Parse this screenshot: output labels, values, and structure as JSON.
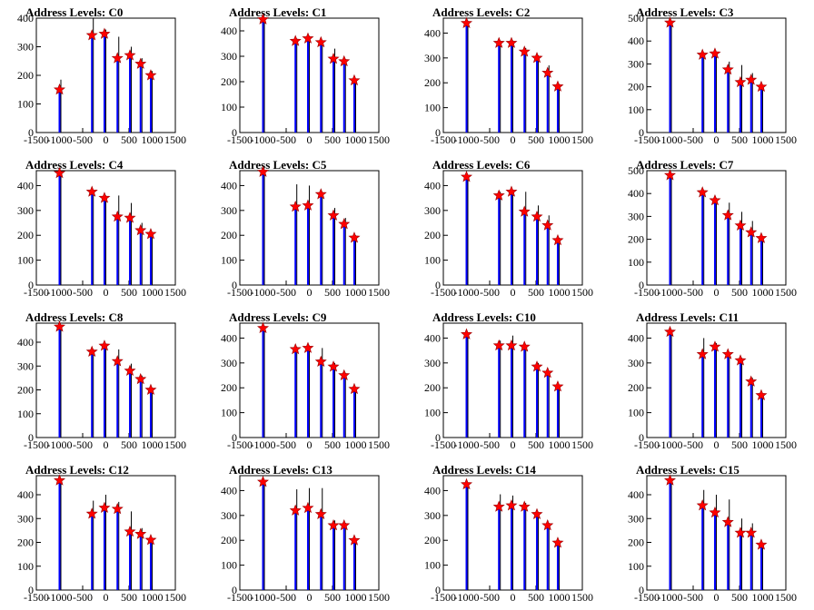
{
  "chart_data": [
    {
      "type": "bar",
      "title": "Address Levels: C0",
      "xlim": [
        -1500,
        1500
      ],
      "ylim": [
        0,
        400
      ],
      "xticks": [
        -1500,
        -1000,
        -500,
        0,
        500,
        1000,
        1500
      ],
      "yticks": [
        0,
        100,
        200,
        300,
        400
      ],
      "markers": {
        "x": [
          -1000,
          -300,
          -30,
          250,
          520,
          750,
          970
        ],
        "y": [
          150,
          340,
          345,
          260,
          270,
          240,
          200
        ]
      },
      "peaks": {
        "x": [
          -1000,
          -300,
          -30,
          250,
          520,
          750,
          970
        ],
        "y": [
          185,
          400,
          360,
          335,
          300,
          260,
          215
        ]
      }
    },
    {
      "type": "bar",
      "title": "Address Levels: C1",
      "xlim": [
        -1500,
        1500
      ],
      "ylim": [
        0,
        450
      ],
      "xticks": [
        -1500,
        -1000,
        -500,
        0,
        500,
        1000,
        1500
      ],
      "yticks": [
        0,
        100,
        200,
        300,
        400
      ],
      "markers": {
        "x": [
          -1000,
          -300,
          -30,
          250,
          520,
          750,
          970
        ],
        "y": [
          445,
          360,
          370,
          355,
          290,
          280,
          205
        ]
      },
      "peaks": {
        "x": [
          -1000,
          -300,
          -30,
          250,
          520,
          750,
          970
        ],
        "y": [
          450,
          370,
          380,
          360,
          330,
          290,
          210
        ]
      }
    },
    {
      "type": "bar",
      "title": "Address Levels: C2",
      "xlim": [
        -1500,
        1500
      ],
      "ylim": [
        0,
        460
      ],
      "xticks": [
        -1500,
        -1000,
        -500,
        0,
        500,
        1000,
        1500
      ],
      "yticks": [
        0,
        100,
        200,
        300,
        400
      ],
      "markers": {
        "x": [
          -1000,
          -300,
          -30,
          250,
          520,
          750,
          970
        ],
        "y": [
          440,
          360,
          360,
          325,
          300,
          240,
          185
        ]
      },
      "peaks": {
        "x": [
          -1000,
          -300,
          -30,
          250,
          520,
          750,
          970
        ],
        "y": [
          450,
          370,
          370,
          340,
          310,
          270,
          195
        ]
      }
    },
    {
      "type": "bar",
      "title": "Address Levels: C3",
      "xlim": [
        -1500,
        1500
      ],
      "ylim": [
        0,
        500
      ],
      "xticks": [
        -1500,
        -1000,
        -500,
        0,
        500,
        1000,
        1500
      ],
      "yticks": [
        0,
        100,
        200,
        300,
        400,
        500
      ],
      "markers": {
        "x": [
          -1000,
          -300,
          -30,
          250,
          520,
          750,
          970
        ],
        "y": [
          480,
          340,
          345,
          275,
          220,
          230,
          200
        ]
      },
      "peaks": {
        "x": [
          -1000,
          -300,
          -30,
          250,
          520,
          750,
          970
        ],
        "y": [
          490,
          350,
          350,
          310,
          295,
          260,
          205
        ]
      }
    },
    {
      "type": "bar",
      "title": "Address Levels: C4",
      "xlim": [
        -1500,
        1500
      ],
      "ylim": [
        0,
        460
      ],
      "xticks": [
        -1500,
        -1000,
        -500,
        0,
        500,
        1000,
        1500
      ],
      "yticks": [
        0,
        100,
        200,
        300,
        400
      ],
      "markers": {
        "x": [
          -1000,
          -300,
          -30,
          250,
          520,
          750,
          970
        ],
        "y": [
          450,
          375,
          350,
          275,
          270,
          220,
          205
        ]
      },
      "peaks": {
        "x": [
          -1000,
          -300,
          -30,
          250,
          520,
          750,
          970
        ],
        "y": [
          460,
          380,
          360,
          360,
          330,
          250,
          210
        ]
      }
    },
    {
      "type": "bar",
      "title": "Address Levels: C5",
      "xlim": [
        -1500,
        1500
      ],
      "ylim": [
        0,
        460
      ],
      "xticks": [
        -1500,
        -1000,
        -500,
        0,
        500,
        1000,
        1500
      ],
      "yticks": [
        0,
        100,
        200,
        300,
        400
      ],
      "markers": {
        "x": [
          -1000,
          -300,
          -30,
          250,
          520,
          750,
          970
        ],
        "y": [
          455,
          315,
          320,
          365,
          280,
          245,
          190
        ]
      },
      "peaks": {
        "x": [
          -1000,
          -300,
          -30,
          250,
          520,
          750,
          970
        ],
        "y": [
          465,
          405,
          400,
          370,
          310,
          270,
          200
        ]
      }
    },
    {
      "type": "bar",
      "title": "Address Levels: C6",
      "xlim": [
        -1500,
        1500
      ],
      "ylim": [
        0,
        460
      ],
      "xticks": [
        -1500,
        -1000,
        -500,
        0,
        500,
        1000,
        1500
      ],
      "yticks": [
        0,
        100,
        200,
        300,
        400
      ],
      "markers": {
        "x": [
          -1000,
          -300,
          -30,
          250,
          520,
          750,
          970
        ],
        "y": [
          435,
          360,
          375,
          295,
          275,
          240,
          180
        ]
      },
      "peaks": {
        "x": [
          -1000,
          -300,
          -30,
          250,
          520,
          750,
          970
        ],
        "y": [
          440,
          375,
          380,
          375,
          320,
          280,
          190
        ]
      }
    },
    {
      "type": "bar",
      "title": "Address Levels: C7",
      "xlim": [
        -1500,
        1500
      ],
      "ylim": [
        0,
        500
      ],
      "xticks": [
        -1500,
        -1000,
        -500,
        0,
        500,
        1000,
        1500
      ],
      "yticks": [
        0,
        100,
        200,
        300,
        400,
        500
      ],
      "markers": {
        "x": [
          -1000,
          -300,
          -30,
          250,
          520,
          750,
          970
        ],
        "y": [
          480,
          405,
          370,
          305,
          260,
          230,
          205
        ]
      },
      "peaks": {
        "x": [
          -1000,
          -300,
          -30,
          250,
          520,
          750,
          970
        ],
        "y": [
          490,
          410,
          380,
          360,
          320,
          280,
          210
        ]
      }
    },
    {
      "type": "bar",
      "title": "Address Levels: C8",
      "xlim": [
        -1500,
        1500
      ],
      "ylim": [
        0,
        480
      ],
      "xticks": [
        -1500,
        -1000,
        -500,
        0,
        500,
        1000,
        1500
      ],
      "yticks": [
        0,
        100,
        200,
        300,
        400
      ],
      "markers": {
        "x": [
          -1000,
          -300,
          -30,
          250,
          520,
          750,
          970
        ],
        "y": [
          465,
          360,
          385,
          320,
          280,
          245,
          200
        ]
      },
      "peaks": {
        "x": [
          -1000,
          -300,
          -30,
          250,
          520,
          750,
          970
        ],
        "y": [
          470,
          370,
          390,
          370,
          310,
          260,
          205
        ]
      }
    },
    {
      "type": "bar",
      "title": "Address Levels: C9",
      "xlim": [
        -1500,
        1500
      ],
      "ylim": [
        0,
        460
      ],
      "xticks": [
        -1500,
        -1000,
        -500,
        0,
        500,
        1000,
        1500
      ],
      "yticks": [
        0,
        100,
        200,
        300,
        400
      ],
      "markers": {
        "x": [
          -1000,
          -300,
          -30,
          250,
          520,
          750,
          970
        ],
        "y": [
          440,
          355,
          360,
          305,
          285,
          250,
          195
        ]
      },
      "peaks": {
        "x": [
          -1000,
          -300,
          -30,
          250,
          520,
          750,
          970
        ],
        "y": [
          450,
          365,
          370,
          360,
          300,
          260,
          200
        ]
      }
    },
    {
      "type": "bar",
      "title": "Address Levels: C10",
      "xlim": [
        -1500,
        1500
      ],
      "ylim": [
        0,
        460
      ],
      "xticks": [
        -1500,
        -1000,
        -500,
        0,
        500,
        1000,
        1500
      ],
      "yticks": [
        0,
        100,
        200,
        300,
        400
      ],
      "markers": {
        "x": [
          -1000,
          -300,
          -30,
          250,
          520,
          750,
          970
        ],
        "y": [
          415,
          370,
          370,
          365,
          285,
          260,
          205
        ]
      },
      "peaks": {
        "x": [
          -1000,
          -300,
          -30,
          250,
          520,
          750,
          970
        ],
        "y": [
          420,
          390,
          410,
          370,
          300,
          265,
          210
        ]
      }
    },
    {
      "type": "bar",
      "title": "Address Levels: C11",
      "xlim": [
        -1500,
        1500
      ],
      "ylim": [
        0,
        460
      ],
      "xticks": [
        -1500,
        -1000,
        -500,
        0,
        500,
        1000,
        1500
      ],
      "yticks": [
        0,
        100,
        200,
        300,
        400
      ],
      "markers": {
        "x": [
          -1000,
          -300,
          -30,
          250,
          520,
          750,
          970
        ],
        "y": [
          425,
          335,
          365,
          335,
          310,
          225,
          170
        ]
      },
      "peaks": {
        "x": [
          -1000,
          -300,
          -30,
          250,
          520,
          750,
          970
        ],
        "y": [
          430,
          400,
          380,
          340,
          320,
          240,
          175
        ]
      }
    },
    {
      "type": "bar",
      "title": "Address Levels: C12",
      "xlim": [
        -1500,
        1500
      ],
      "ylim": [
        0,
        480
      ],
      "xticks": [
        -1500,
        -1000,
        -500,
        0,
        500,
        1000,
        1500
      ],
      "yticks": [
        0,
        100,
        200,
        300,
        400
      ],
      "markers": {
        "x": [
          -1000,
          -300,
          -30,
          250,
          520,
          750,
          970
        ],
        "y": [
          460,
          320,
          345,
          340,
          245,
          235,
          210
        ]
      },
      "peaks": {
        "x": [
          -1000,
          -300,
          -30,
          250,
          520,
          750,
          970
        ],
        "y": [
          465,
          375,
          400,
          370,
          330,
          260,
          215
        ]
      }
    },
    {
      "type": "bar",
      "title": "Address Levels: C13",
      "xlim": [
        -1500,
        1500
      ],
      "ylim": [
        0,
        460
      ],
      "xticks": [
        -1500,
        -1000,
        -500,
        0,
        500,
        1000,
        1500
      ],
      "yticks": [
        0,
        100,
        200,
        300,
        400
      ],
      "markers": {
        "x": [
          -1000,
          -300,
          -30,
          250,
          520,
          750,
          970
        ],
        "y": [
          435,
          320,
          330,
          305,
          260,
          260,
          200
        ]
      },
      "peaks": {
        "x": [
          -1000,
          -300,
          -30,
          250,
          520,
          750,
          970
        ],
        "y": [
          440,
          405,
          410,
          410,
          280,
          270,
          205
        ]
      }
    },
    {
      "type": "bar",
      "title": "Address Levels: C14",
      "xlim": [
        -1500,
        1500
      ],
      "ylim": [
        0,
        460
      ],
      "xticks": [
        -1500,
        -1000,
        -500,
        0,
        500,
        1000,
        1500
      ],
      "yticks": [
        0,
        100,
        200,
        300,
        400
      ],
      "markers": {
        "x": [
          -1000,
          -300,
          -30,
          250,
          520,
          750,
          970
        ],
        "y": [
          425,
          335,
          340,
          335,
          305,
          260,
          190
        ]
      },
      "peaks": {
        "x": [
          -1000,
          -300,
          -30,
          250,
          520,
          750,
          970
        ],
        "y": [
          430,
          385,
          380,
          350,
          310,
          270,
          200
        ]
      }
    },
    {
      "type": "bar",
      "title": "Address Levels: C15",
      "xlim": [
        -1500,
        1500
      ],
      "ylim": [
        0,
        480
      ],
      "xticks": [
        -1500,
        -1000,
        -500,
        0,
        500,
        1000,
        1500
      ],
      "yticks": [
        0,
        100,
        200,
        300,
        400
      ],
      "markers": {
        "x": [
          -1000,
          -300,
          -30,
          250,
          520,
          750,
          970
        ],
        "y": [
          460,
          355,
          325,
          285,
          240,
          240,
          190
        ]
      },
      "peaks": {
        "x": [
          -1000,
          -300,
          -30,
          250,
          520,
          750,
          970
        ],
        "y": [
          465,
          420,
          400,
          380,
          300,
          280,
          195
        ]
      }
    }
  ],
  "colors": {
    "bars": "#0000ff",
    "peaks": "#000000",
    "markers": "#ff0000",
    "axes": "#000000"
  }
}
